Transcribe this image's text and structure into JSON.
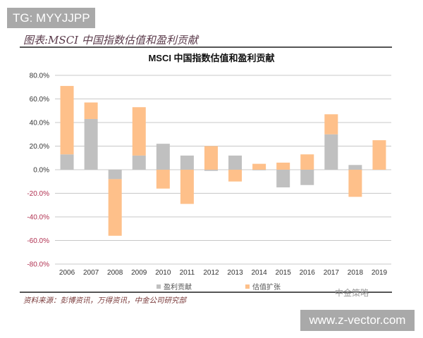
{
  "watermark_top": "TG: MYYJJPP",
  "caption": "图表:MSCI 中国指数估值和盈利贡献",
  "source": "资料来源：彭博资讯，万得资讯，中金公司研究部",
  "logo_text": "中金策略",
  "watermark_bottom": "www.z-vector.com",
  "chart_data": {
    "type": "bar",
    "stacked": true,
    "title": "MSCI 中国指数估值和盈利贡献",
    "categories": [
      "2006",
      "2007",
      "2008",
      "2009",
      "2010",
      "2011",
      "2012",
      "2013",
      "2014",
      "2015",
      "2016",
      "2017",
      "2018",
      "2019"
    ],
    "series": [
      {
        "name": "盈利贡献",
        "color": "#c0c0c0",
        "values": [
          13,
          43,
          -8,
          12,
          22,
          12,
          -1,
          12,
          -0.5,
          -15,
          -13,
          30,
          4,
          0
        ]
      },
      {
        "name": "估值扩张",
        "color": "#fec08a",
        "values": [
          58,
          14,
          -48,
          41,
          -16,
          -29,
          20,
          -10,
          5,
          6,
          13,
          17,
          -23,
          25
        ]
      }
    ],
    "ylim": [
      -80,
      80
    ],
    "yticks": [
      "80.0%",
      "60.0%",
      "40.0%",
      "20.0%",
      "0.0%",
      "-20.0%",
      "-40.0%",
      "-60.0%",
      "-80.0%"
    ],
    "ytick_values": [
      80,
      60,
      40,
      20,
      0,
      -20,
      -40,
      -60,
      -80
    ],
    "negative_tick_color": "#b03050",
    "grid": true,
    "legend_position": "bottom"
  }
}
